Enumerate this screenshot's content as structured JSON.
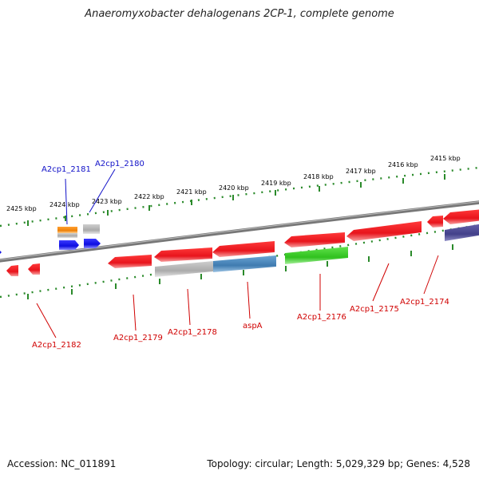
{
  "title": "Anaeromyxobacter dehalogenans 2CP-1, complete genome",
  "footer": {
    "accession": "Accession: NC_011891",
    "stats": "Topology: circular; Length: 5,029,329 bp; Genes: 4,528"
  },
  "scale_labels": [
    "2425 kbp",
    "2424 kbp",
    "2423 kbp",
    "2422 kbp",
    "2421 kbp",
    "2420 kbp",
    "2419 kbp",
    "2418 kbp",
    "2417 kbp",
    "2416 kbp",
    "2415 kbp"
  ],
  "genes_top": [
    "A2cp1_2181",
    "A2cp1_2180"
  ],
  "genes_bottom": [
    "A2cp1_2182",
    "A2cp1_2179",
    "A2cp1_2178",
    "aspA",
    "A2cp1_2176",
    "A2cp1_2175",
    "A2cp1_2174"
  ],
  "colors": {
    "cds": "#e8141c",
    "gene_grey": "#b4b4b4",
    "gene_steel": "#4a86b8",
    "gene_green": "#3fcf2c",
    "gene_blue": "#1414e6",
    "gene_orange": "#f08a0c",
    "gene_purple": "#4a4890",
    "backbone": "#7a7a7a",
    "ticks": "#2a8a2a"
  }
}
